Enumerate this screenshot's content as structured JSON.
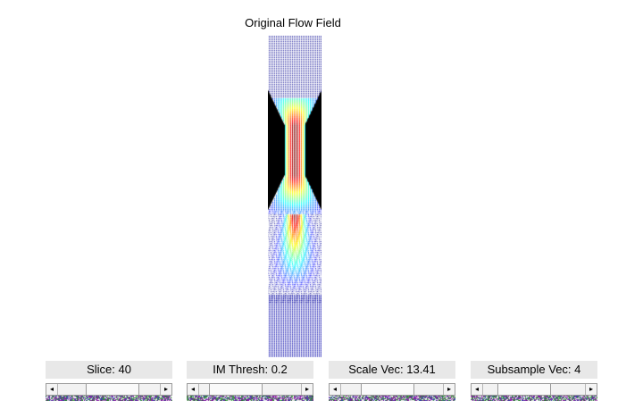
{
  "plot": {
    "title": "Original Flow Field"
  },
  "controls": [
    {
      "label": "Slice: 40",
      "position": 0.55
    },
    {
      "label": "IM Thresh: 0.2",
      "position": 0.2
    },
    {
      "label": "Scale Vec: 13.41",
      "position": 0.4
    },
    {
      "label": "Subsample Vec: 4",
      "position": 0.3
    }
  ],
  "arrows": {
    "left": "◂",
    "right": "▸"
  },
  "icons": {
    "slider_left": "triangle-left",
    "slider_right": "triangle-right"
  }
}
